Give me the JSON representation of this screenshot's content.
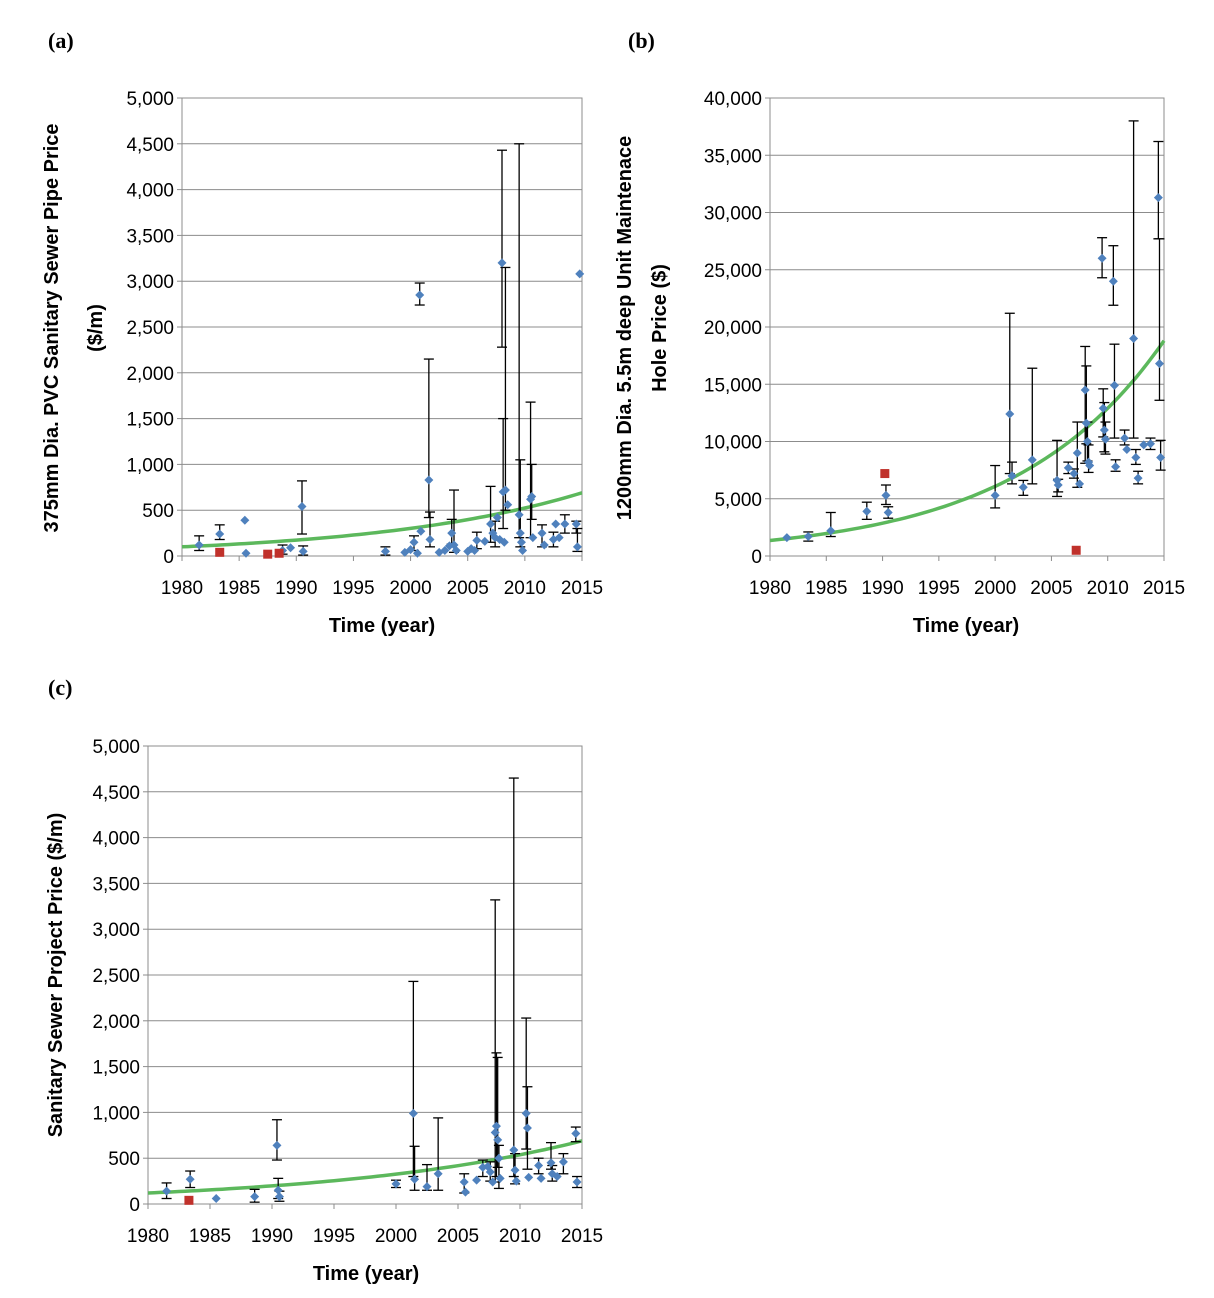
{
  "chart_data": [
    {
      "id": "a",
      "type": "scatter",
      "panel_label": "(a)",
      "title": "",
      "xlabel": "Time (year)",
      "ylabel_lines": [
        "375mm Dia. PVC Sanitary Sewer Pipe Price",
        "($/m)"
      ],
      "xlim": [
        1980,
        2015
      ],
      "ylim": [
        0,
        5000
      ],
      "x_ticks": [
        1980,
        1985,
        1990,
        1995,
        2000,
        2005,
        2010,
        2015
      ],
      "y_ticks": [
        0,
        500,
        1000,
        1500,
        2000,
        2500,
        3000,
        3500,
        4000,
        4500,
        5000
      ],
      "x_tick_labels": [
        "1980",
        "1985",
        "1990",
        "1995",
        "2000",
        "2005",
        "2010",
        "2015"
      ],
      "y_tick_labels": [
        "0",
        "500",
        "1,000",
        "1,500",
        "2,000",
        "2,500",
        "3,000",
        "3,500",
        "4,000",
        "4,500",
        "5,000"
      ],
      "grid": "horizontal",
      "colors": {
        "points": "#4f81bd",
        "outliers": "#c0312b",
        "trend": "#5cb85c"
      },
      "points": [
        {
          "x": 1981.5,
          "y": 120,
          "lo": 60,
          "hi": 220
        },
        {
          "x": 1983.3,
          "y": 240,
          "lo": 180,
          "hi": 340
        },
        {
          "x": 1985.5,
          "y": 390
        },
        {
          "x": 1985.6,
          "y": 30
        },
        {
          "x": 1988.8,
          "y": 60,
          "lo": 20,
          "hi": 120
        },
        {
          "x": 1989.5,
          "y": 90
        },
        {
          "x": 1990.5,
          "y": 540,
          "lo": 240,
          "hi": 820
        },
        {
          "x": 1990.6,
          "y": 50,
          "lo": 10,
          "hi": 110
        },
        {
          "x": 1997.8,
          "y": 50,
          "lo": 10,
          "hi": 100
        },
        {
          "x": 1999.5,
          "y": 40
        },
        {
          "x": 2000.0,
          "y": 70
        },
        {
          "x": 2000.3,
          "y": 150,
          "lo": 60,
          "hi": 220
        },
        {
          "x": 2000.6,
          "y": 30
        },
        {
          "x": 2000.8,
          "y": 2850,
          "lo": 2740,
          "hi": 2980
        },
        {
          "x": 2000.9,
          "y": 270
        },
        {
          "x": 2001.6,
          "y": 830,
          "lo": 420,
          "hi": 2150
        },
        {
          "x": 2001.7,
          "y": 180,
          "lo": 100,
          "hi": 480
        },
        {
          "x": 2002.5,
          "y": 40
        },
        {
          "x": 2003.0,
          "y": 60
        },
        {
          "x": 2003.4,
          "y": 110
        },
        {
          "x": 2003.6,
          "y": 250,
          "lo": 130,
          "hi": 400
        },
        {
          "x": 2003.8,
          "y": 120,
          "lo": 40,
          "hi": 720
        },
        {
          "x": 2004.0,
          "y": 60
        },
        {
          "x": 2005.0,
          "y": 50
        },
        {
          "x": 2005.3,
          "y": 80
        },
        {
          "x": 2005.6,
          "y": 60
        },
        {
          "x": 2005.8,
          "y": 170,
          "lo": 80,
          "hi": 260
        },
        {
          "x": 2006.5,
          "y": 160
        },
        {
          "x": 2007.0,
          "y": 350,
          "lo": 150,
          "hi": 760
        },
        {
          "x": 2007.2,
          "y": 250
        },
        {
          "x": 2007.4,
          "y": 200,
          "lo": 100,
          "hi": 380
        },
        {
          "x": 2007.6,
          "y": 420
        },
        {
          "x": 2007.8,
          "y": 180
        },
        {
          "x": 2008.0,
          "y": 3200,
          "lo": 2280,
          "hi": 4430
        },
        {
          "x": 2008.1,
          "y": 700,
          "lo": 300,
          "hi": 1500
        },
        {
          "x": 2008.2,
          "y": 150
        },
        {
          "x": 2008.3,
          "y": 720,
          "lo": 500,
          "hi": 3150
        },
        {
          "x": 2008.5,
          "y": 560
        },
        {
          "x": 2009.5,
          "y": 450,
          "lo": 200,
          "hi": 4500
        },
        {
          "x": 2009.6,
          "y": 250,
          "lo": 100,
          "hi": 1050
        },
        {
          "x": 2009.7,
          "y": 150
        },
        {
          "x": 2009.8,
          "y": 60
        },
        {
          "x": 2010.5,
          "y": 620,
          "lo": 200,
          "hi": 1680
        },
        {
          "x": 2010.6,
          "y": 650,
          "lo": 400,
          "hi": 1000
        },
        {
          "x": 2010.7,
          "y": 200
        },
        {
          "x": 2011.5,
          "y": 250,
          "lo": 100,
          "hi": 340
        },
        {
          "x": 2011.7,
          "y": 120
        },
        {
          "x": 2012.5,
          "y": 180,
          "lo": 100,
          "hi": 260
        },
        {
          "x": 2012.7,
          "y": 350
        },
        {
          "x": 2013.0,
          "y": 200
        },
        {
          "x": 2013.5,
          "y": 350,
          "lo": 250,
          "hi": 450
        },
        {
          "x": 2014.5,
          "y": 350,
          "lo": 250,
          "hi": 380
        },
        {
          "x": 2014.6,
          "y": 100,
          "lo": 50,
          "hi": 300
        },
        {
          "x": 2014.8,
          "y": 3080
        }
      ],
      "outliers": [
        {
          "x": 1983.3,
          "y": 40
        },
        {
          "x": 1987.5,
          "y": 20
        },
        {
          "x": 1988.5,
          "y": 30
        }
      ],
      "trend": {
        "type": "exponential",
        "x0": 1980,
        "y0": 100,
        "x1": 2015,
        "y1": 690
      }
    },
    {
      "id": "b",
      "type": "scatter",
      "panel_label": "(b)",
      "title": "",
      "xlabel": "Time (year)",
      "ylabel_lines": [
        "1200mm Dia. 5.5m deep Unit Maintenace",
        "Hole Price ($)"
      ],
      "xlim": [
        1980,
        2015
      ],
      "ylim": [
        0,
        40000
      ],
      "x_ticks": [
        1980,
        1985,
        1990,
        1995,
        2000,
        2005,
        2010,
        2015
      ],
      "y_ticks": [
        0,
        5000,
        10000,
        15000,
        20000,
        25000,
        30000,
        35000,
        40000
      ],
      "x_tick_labels": [
        "1980",
        "1985",
        "1990",
        "1995",
        "2000",
        "2005",
        "2010",
        "2015"
      ],
      "y_tick_labels": [
        "0",
        "5,000",
        "10,000",
        "15,000",
        "20,000",
        "25,000",
        "30,000",
        "35,000",
        "40,000"
      ],
      "grid": "horizontal",
      "colors": {
        "points": "#4f81bd",
        "outliers": "#c0312b",
        "trend": "#5cb85c"
      },
      "points": [
        {
          "x": 1981.5,
          "y": 1600
        },
        {
          "x": 1983.4,
          "y": 1700,
          "lo": 1300,
          "hi": 2100
        },
        {
          "x": 1985.4,
          "y": 2200,
          "lo": 1700,
          "hi": 3800
        },
        {
          "x": 1988.6,
          "y": 3900,
          "lo": 3200,
          "hi": 4700
        },
        {
          "x": 1990.3,
          "y": 5300,
          "lo": 4500,
          "hi": 6200
        },
        {
          "x": 1990.5,
          "y": 3800,
          "lo": 3300,
          "hi": 4300
        },
        {
          "x": 2000.0,
          "y": 5300,
          "lo": 4200,
          "hi": 7900
        },
        {
          "x": 2001.3,
          "y": 12400,
          "lo": 7200,
          "hi": 21200
        },
        {
          "x": 2001.5,
          "y": 7000,
          "lo": 6300,
          "hi": 8200
        },
        {
          "x": 2002.5,
          "y": 6000,
          "lo": 5300,
          "hi": 6600
        },
        {
          "x": 2003.3,
          "y": 8400,
          "lo": 6300,
          "hi": 16400
        },
        {
          "x": 2005.5,
          "y": 6600,
          "lo": 5200,
          "hi": 10100
        },
        {
          "x": 2005.6,
          "y": 6200,
          "lo": 5600,
          "hi": 6700
        },
        {
          "x": 2006.5,
          "y": 7700,
          "lo": 7200,
          "hi": 8200
        },
        {
          "x": 2007.0,
          "y": 7200,
          "lo": 6800,
          "hi": 7600
        },
        {
          "x": 2007.3,
          "y": 9000,
          "lo": 6000,
          "hi": 11700
        },
        {
          "x": 2007.5,
          "y": 6300
        },
        {
          "x": 2008.0,
          "y": 14500,
          "lo": 8100,
          "hi": 18300
        },
        {
          "x": 2008.1,
          "y": 11600,
          "lo": 9800,
          "hi": 16600
        },
        {
          "x": 2008.2,
          "y": 10000,
          "lo": 8300,
          "hi": 11700
        },
        {
          "x": 2008.3,
          "y": 8200,
          "lo": 7300,
          "hi": 9700
        },
        {
          "x": 2008.4,
          "y": 7900
        },
        {
          "x": 2009.5,
          "y": 26000,
          "lo": 24300,
          "hi": 27800
        },
        {
          "x": 2009.6,
          "y": 12900,
          "lo": 10400,
          "hi": 14600
        },
        {
          "x": 2009.7,
          "y": 11000,
          "lo": 9100,
          "hi": 13400
        },
        {
          "x": 2009.8,
          "y": 10200,
          "lo": 8900,
          "hi": 11700
        },
        {
          "x": 2010.5,
          "y": 24000,
          "lo": 21900,
          "hi": 27100
        },
        {
          "x": 2010.6,
          "y": 14900,
          "lo": 10300,
          "hi": 18500
        },
        {
          "x": 2010.7,
          "y": 7800,
          "lo": 7400,
          "hi": 8400
        },
        {
          "x": 2011.5,
          "y": 10300,
          "lo": 9700,
          "hi": 11000
        },
        {
          "x": 2011.7,
          "y": 9300
        },
        {
          "x": 2012.3,
          "y": 19000,
          "lo": 10300,
          "hi": 38000
        },
        {
          "x": 2012.5,
          "y": 8600,
          "lo": 8000,
          "hi": 9300
        },
        {
          "x": 2012.7,
          "y": 6800,
          "lo": 6300,
          "hi": 7400
        },
        {
          "x": 2013.2,
          "y": 9700
        },
        {
          "x": 2013.8,
          "y": 9800,
          "lo": 9300,
          "hi": 10300
        },
        {
          "x": 2014.5,
          "y": 31300,
          "lo": 27700,
          "hi": 36200
        },
        {
          "x": 2014.6,
          "y": 16800,
          "lo": 13600,
          "hi": 27700
        },
        {
          "x": 2014.7,
          "y": 8600,
          "lo": 7500,
          "hi": 10100
        }
      ],
      "outliers": [
        {
          "x": 1990.2,
          "y": 7200
        },
        {
          "x": 2007.2,
          "y": 500
        }
      ],
      "trend": {
        "type": "exponential",
        "x0": 1980,
        "y0": 1350,
        "x1": 2015,
        "y1": 18800
      }
    },
    {
      "id": "c",
      "type": "scatter",
      "panel_label": "(c)",
      "title": "",
      "xlabel": "Time (year)",
      "ylabel_lines": [
        "Sanitary Sewer Project Price ($/m)"
      ],
      "xlim": [
        1980,
        2015
      ],
      "ylim": [
        0,
        5000
      ],
      "x_ticks": [
        1980,
        1985,
        1990,
        1995,
        2000,
        2005,
        2010,
        2015
      ],
      "y_ticks": [
        0,
        500,
        1000,
        1500,
        2000,
        2500,
        3000,
        3500,
        4000,
        4500,
        5000
      ],
      "x_tick_labels": [
        "1980",
        "1985",
        "1990",
        "1995",
        "2000",
        "2005",
        "2010",
        "2015"
      ],
      "y_tick_labels": [
        "0",
        "500",
        "1,000",
        "1,500",
        "2,000",
        "2,500",
        "3,000",
        "3,500",
        "4,000",
        "4,500",
        "5,000"
      ],
      "grid": "horizontal",
      "colors": {
        "points": "#4f81bd",
        "outliers": "#c0312b",
        "trend": "#5cb85c"
      },
      "points": [
        {
          "x": 1981.5,
          "y": 140,
          "lo": 60,
          "hi": 230
        },
        {
          "x": 1983.4,
          "y": 270,
          "lo": 180,
          "hi": 360
        },
        {
          "x": 1985.5,
          "y": 60
        },
        {
          "x": 1988.6,
          "y": 80,
          "lo": 20,
          "hi": 160
        },
        {
          "x": 1990.4,
          "y": 640,
          "lo": 480,
          "hi": 920
        },
        {
          "x": 1990.5,
          "y": 150,
          "lo": 60,
          "hi": 280
        },
        {
          "x": 1990.6,
          "y": 80,
          "lo": 30,
          "hi": 140
        },
        {
          "x": 2000.0,
          "y": 220,
          "lo": 180,
          "hi": 260
        },
        {
          "x": 2001.4,
          "y": 990,
          "lo": 300,
          "hi": 2430
        },
        {
          "x": 2001.5,
          "y": 270,
          "lo": 150,
          "hi": 630
        },
        {
          "x": 2002.5,
          "y": 190,
          "lo": 150,
          "hi": 430
        },
        {
          "x": 2003.4,
          "y": 330,
          "lo": 150,
          "hi": 940
        },
        {
          "x": 2005.5,
          "y": 240,
          "lo": 120,
          "hi": 330
        },
        {
          "x": 2005.6,
          "y": 130
        },
        {
          "x": 2006.5,
          "y": 260
        },
        {
          "x": 2007.0,
          "y": 400,
          "lo": 300,
          "hi": 480
        },
        {
          "x": 2007.4,
          "y": 410
        },
        {
          "x": 2007.6,
          "y": 350,
          "lo": 250,
          "hi": 460
        },
        {
          "x": 2007.8,
          "y": 240
        },
        {
          "x": 2008.0,
          "y": 780,
          "lo": 240,
          "hi": 3320
        },
        {
          "x": 2008.1,
          "y": 850,
          "lo": 300,
          "hi": 1650
        },
        {
          "x": 2008.2,
          "y": 700,
          "lo": 400,
          "hi": 1600
        },
        {
          "x": 2008.3,
          "y": 500,
          "lo": 170,
          "hi": 640
        },
        {
          "x": 2008.4,
          "y": 280
        },
        {
          "x": 2009.5,
          "y": 590,
          "lo": 300,
          "hi": 4650
        },
        {
          "x": 2009.6,
          "y": 370,
          "lo": 220,
          "hi": 550
        },
        {
          "x": 2009.7,
          "y": 250
        },
        {
          "x": 2010.5,
          "y": 990,
          "lo": 600,
          "hi": 2030
        },
        {
          "x": 2010.6,
          "y": 830,
          "lo": 380,
          "hi": 1280
        },
        {
          "x": 2010.7,
          "y": 290
        },
        {
          "x": 2011.5,
          "y": 420,
          "lo": 330,
          "hi": 500
        },
        {
          "x": 2011.7,
          "y": 280
        },
        {
          "x": 2012.5,
          "y": 450,
          "lo": 380,
          "hi": 670
        },
        {
          "x": 2012.6,
          "y": 330,
          "lo": 250,
          "hi": 420
        },
        {
          "x": 2013.0,
          "y": 300
        },
        {
          "x": 2013.5,
          "y": 460,
          "lo": 330,
          "hi": 550
        },
        {
          "x": 2014.5,
          "y": 770,
          "lo": 680,
          "hi": 840
        },
        {
          "x": 2014.6,
          "y": 240,
          "lo": 180,
          "hi": 300
        }
      ],
      "outliers": [
        {
          "x": 1983.3,
          "y": 40
        }
      ],
      "trend": {
        "type": "exponential",
        "x0": 1980,
        "y0": 120,
        "x1": 2015,
        "y1": 690
      }
    }
  ]
}
